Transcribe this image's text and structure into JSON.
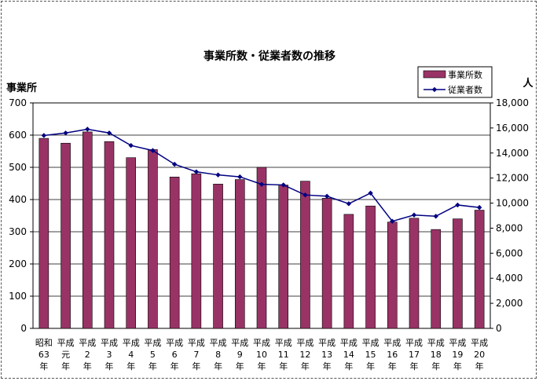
{
  "chart_data": {
    "type": "bar",
    "title": "事業所数・従業者数の推移",
    "left_axis_label": "事業所",
    "right_axis_label": "人",
    "categories": [
      [
        "昭和",
        "63",
        "年"
      ],
      [
        "平成",
        "元",
        "年"
      ],
      [
        "平成",
        "2",
        "年"
      ],
      [
        "平成",
        "3",
        "年"
      ],
      [
        "平成",
        "4",
        "年"
      ],
      [
        "平成",
        "5",
        "年"
      ],
      [
        "平成",
        "6",
        "年"
      ],
      [
        "平成",
        "7",
        "年"
      ],
      [
        "平成",
        "8",
        "年"
      ],
      [
        "平成",
        "9",
        "年"
      ],
      [
        "平成",
        "10",
        "年"
      ],
      [
        "平成",
        "11",
        "年"
      ],
      [
        "平成",
        "12",
        "年"
      ],
      [
        "平成",
        "13",
        "年"
      ],
      [
        "平成",
        "14",
        "年"
      ],
      [
        "平成",
        "15",
        "年"
      ],
      [
        "平成",
        "16",
        "年"
      ],
      [
        "平成",
        "17",
        "年"
      ],
      [
        "平成",
        "18",
        "年"
      ],
      [
        "平成",
        "19",
        "年"
      ],
      [
        "平成",
        "20",
        "年"
      ]
    ],
    "series": [
      {
        "name": "事業所数",
        "type": "bar",
        "axis": "left",
        "color": "#993366",
        "values": [
          590,
          575,
          610,
          580,
          530,
          555,
          470,
          480,
          448,
          462,
          500,
          445,
          457,
          404,
          354,
          380,
          330,
          342,
          307,
          340,
          367
        ]
      },
      {
        "name": "従業者数",
        "type": "line",
        "axis": "right",
        "color": "#000080",
        "values": [
          15400,
          15600,
          15900,
          15600,
          14600,
          14200,
          13100,
          12500,
          12250,
          12100,
          11500,
          11450,
          10650,
          10550,
          9950,
          10800,
          8550,
          9050,
          8950,
          9850,
          9650
        ]
      }
    ],
    "left_axis": {
      "min": 0,
      "max": 700,
      "step": 100,
      "ticks": [
        "0",
        "100",
        "200",
        "300",
        "400",
        "500",
        "600",
        "700"
      ]
    },
    "right_axis": {
      "min": 0,
      "max": 18000,
      "step": 2000,
      "ticks": [
        "0",
        "2,000",
        "4,000",
        "6,000",
        "8,000",
        "10,000",
        "12,000",
        "14,000",
        "16,000",
        "18,000"
      ]
    },
    "grid": true,
    "legend_position": "top-right"
  }
}
